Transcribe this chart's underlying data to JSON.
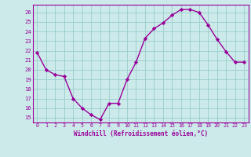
{
  "x": [
    0,
    1,
    2,
    3,
    4,
    5,
    6,
    7,
    8,
    9,
    10,
    11,
    12,
    13,
    14,
    15,
    16,
    17,
    18,
    19,
    20,
    21,
    22,
    23
  ],
  "y": [
    21.8,
    20.0,
    19.5,
    19.3,
    17.0,
    16.0,
    15.3,
    14.8,
    16.5,
    16.5,
    19.0,
    20.8,
    23.3,
    24.3,
    24.9,
    25.7,
    26.3,
    26.3,
    26.0,
    24.7,
    23.2,
    21.9,
    20.8,
    20.8
  ],
  "line_color": "#990099",
  "marker_color": "#990099",
  "bg_color": "#cceaea",
  "grid_color": "#99cccc",
  "xlabel": "Windchill (Refroidissement éolien,°C)",
  "xlabel_color": "#990099",
  "tick_color": "#990099",
  "ylim": [
    14.5,
    26.8
  ],
  "xlim": [
    -0.5,
    23.5
  ],
  "yticks": [
    15,
    16,
    17,
    18,
    19,
    20,
    21,
    22,
    23,
    24,
    25,
    26
  ],
  "xticks": [
    0,
    1,
    2,
    3,
    4,
    5,
    6,
    7,
    8,
    9,
    10,
    11,
    12,
    13,
    14,
    15,
    16,
    17,
    18,
    19,
    20,
    21,
    22,
    23
  ]
}
